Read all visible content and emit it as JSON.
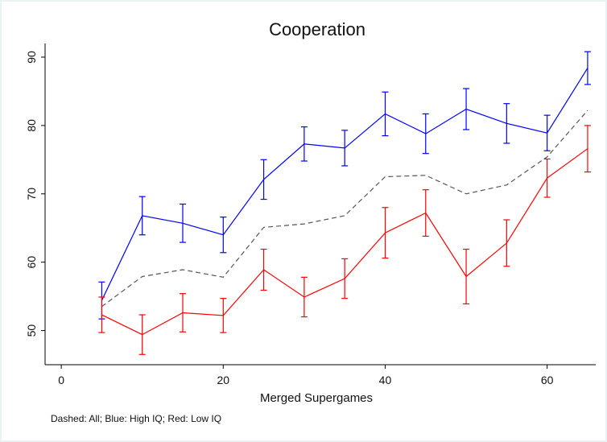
{
  "chart_data": {
    "type": "line",
    "title": "Cooperation",
    "xlabel": "Merged Supergames",
    "ylabel": "",
    "note": "Dashed: All; Blue: High IQ; Red: Low IQ",
    "xlim": [
      -2,
      66
    ],
    "ylim": [
      45,
      92
    ],
    "xticks": [
      0,
      20,
      40,
      60
    ],
    "yticks": [
      50,
      60,
      70,
      80,
      90
    ],
    "grid": false,
    "x": [
      5,
      10,
      15,
      20,
      25,
      30,
      35,
      40,
      45,
      50,
      55,
      60,
      65
    ],
    "series": [
      {
        "key": "all",
        "style": "dashed",
        "color": "#555555",
        "values": [
          53.5,
          57.9,
          58.9,
          57.8,
          65.1,
          65.6,
          66.8,
          72.5,
          72.7,
          70.0,
          71.3,
          75.4,
          82.2
        ],
        "errors": null
      },
      {
        "key": "high_iq",
        "style": "solid",
        "color": "#0000ff",
        "values": [
          54.4,
          66.8,
          65.7,
          64.0,
          72.1,
          77.3,
          76.7,
          81.7,
          78.8,
          82.4,
          80.3,
          78.9,
          88.4
        ],
        "errors": [
          2.7,
          2.8,
          2.8,
          2.6,
          2.9,
          2.5,
          2.6,
          3.2,
          2.9,
          3.0,
          2.9,
          2.6,
          2.4
        ]
      },
      {
        "key": "low_iq",
        "style": "solid",
        "color": "#ff0000",
        "values": [
          52.3,
          49.4,
          52.6,
          52.2,
          58.9,
          54.9,
          57.6,
          64.3,
          67.2,
          57.9,
          62.8,
          72.3,
          76.6
        ],
        "errors": [
          2.6,
          2.9,
          2.8,
          2.5,
          3.0,
          2.9,
          2.9,
          3.7,
          3.4,
          4.0,
          3.4,
          2.8,
          3.4
        ]
      }
    ]
  }
}
